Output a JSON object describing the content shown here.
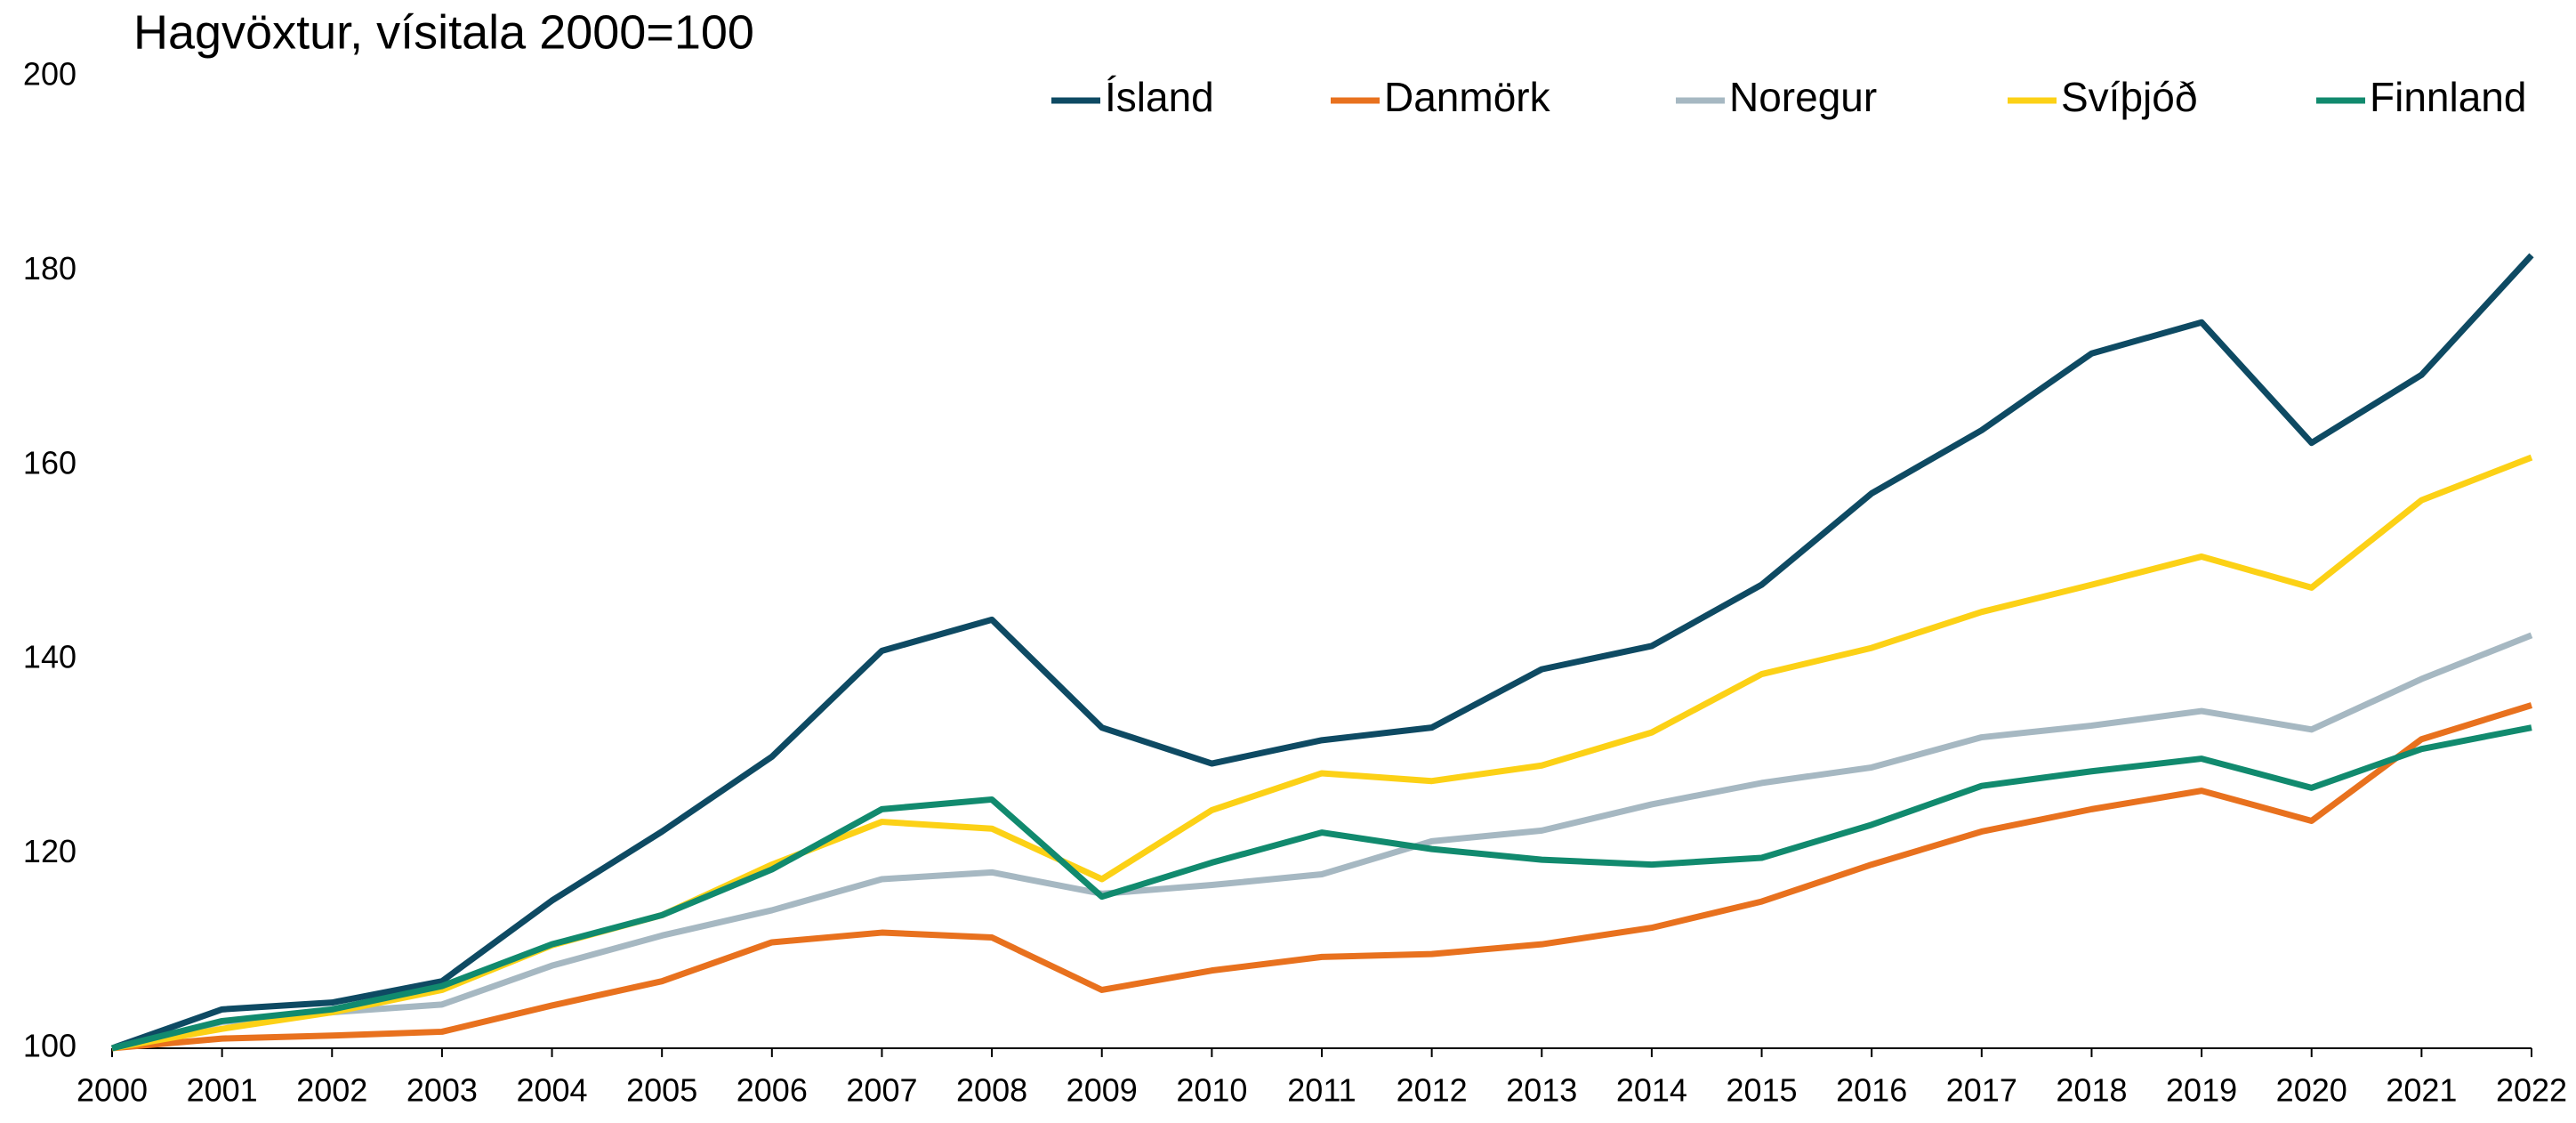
{
  "chart_data": {
    "type": "line",
    "title": "Hagvöxtur, vísitala 2000=100",
    "categories": [
      "2000",
      "2001",
      "2002",
      "2003",
      "2004",
      "2005",
      "2006",
      "2007",
      "2008",
      "2009",
      "2010",
      "2011",
      "2012",
      "2013",
      "2014",
      "2015",
      "2016",
      "2017",
      "2018",
      "2019",
      "2020",
      "2021",
      "2022"
    ],
    "series": [
      {
        "name": "Ísland",
        "color": "#0e4a63",
        "values": [
          100,
          104.0,
          104.7,
          106.9,
          115.2,
          122.3,
          130.0,
          140.9,
          144.1,
          133.0,
          129.3,
          131.7,
          133.0,
          139.0,
          141.4,
          147.7,
          157.1,
          163.6,
          171.5,
          174.7,
          162.3,
          169.3,
          181.6
        ]
      },
      {
        "name": "Danmörk",
        "color": "#e8711e",
        "values": [
          100,
          101.0,
          101.3,
          101.7,
          104.4,
          106.9,
          110.9,
          111.9,
          111.4,
          106.0,
          108.0,
          109.4,
          109.7,
          110.7,
          112.4,
          115.1,
          118.9,
          122.3,
          124.6,
          126.5,
          123.4,
          131.8,
          135.3
        ]
      },
      {
        "name": "Noregur",
        "color": "#a6b8c2",
        "values": [
          100,
          102.7,
          103.7,
          104.5,
          108.5,
          111.6,
          114.2,
          117.4,
          118.1,
          115.9,
          116.8,
          117.9,
          121.3,
          122.4,
          125.1,
          127.3,
          128.9,
          132.0,
          133.2,
          134.7,
          132.8,
          138.0,
          142.5
        ]
      },
      {
        "name": "Svíþjóð",
        "color": "#fcd116",
        "values": [
          100,
          102.0,
          103.7,
          106.0,
          110.6,
          113.7,
          118.9,
          123.3,
          122.6,
          117.4,
          124.5,
          128.3,
          127.5,
          129.1,
          132.5,
          138.5,
          141.2,
          144.9,
          147.7,
          150.6,
          147.4,
          156.4,
          160.8
        ]
      },
      {
        "name": "Finnland",
        "color": "#118a6e",
        "values": [
          100,
          102.8,
          104.0,
          106.4,
          110.7,
          113.7,
          118.4,
          124.6,
          125.6,
          115.6,
          119.1,
          122.2,
          120.5,
          119.4,
          118.9,
          119.6,
          123.0,
          127.0,
          128.5,
          129.8,
          126.8,
          130.8,
          133.0
        ]
      }
    ],
    "ylim": [
      100,
      200
    ],
    "yticks": [
      100,
      120,
      140,
      160,
      180,
      200
    ],
    "grid": false,
    "legend": "top"
  }
}
